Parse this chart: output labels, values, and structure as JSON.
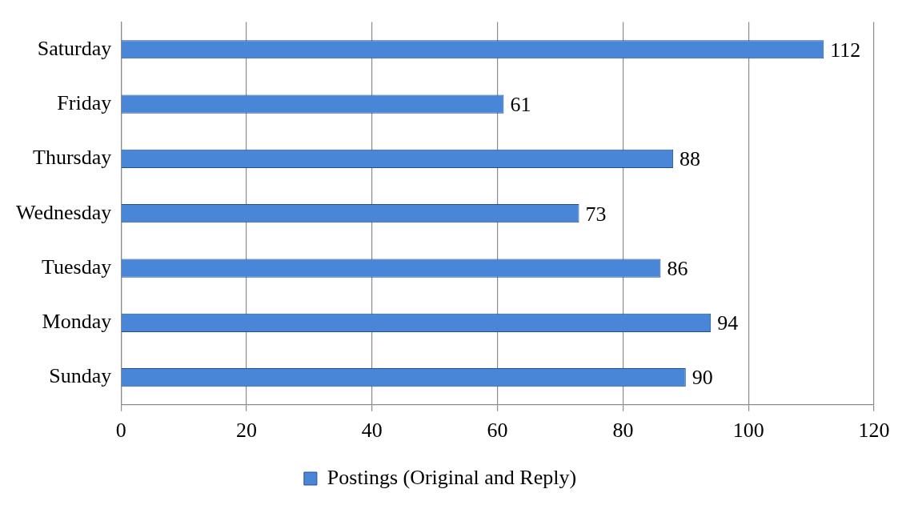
{
  "chart_data": {
    "type": "bar",
    "orientation": "horizontal",
    "categories": [
      "Saturday",
      "Friday",
      "Thursday",
      "Wednesday",
      "Tuesday",
      "Monday",
      "Sunday"
    ],
    "series": [
      {
        "name": "Postings (Original and Reply)",
        "color": "#4a86d8",
        "values": [
          112,
          61,
          88,
          73,
          86,
          94,
          90
        ]
      }
    ],
    "xlim": [
      0,
      120
    ],
    "xticks": [
      0,
      20,
      40,
      60,
      80,
      100,
      120
    ],
    "grid": "x",
    "legend": "bottom",
    "data_labels": true
  }
}
